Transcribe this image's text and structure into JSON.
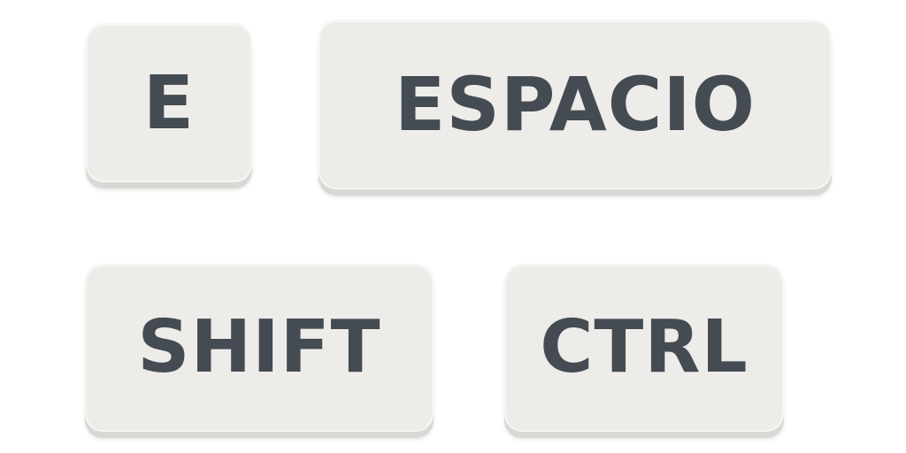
{
  "keys": {
    "e": {
      "label": "E"
    },
    "space": {
      "label": "ESPACIO"
    },
    "shift": {
      "label": "SHIFT"
    },
    "ctrl": {
      "label": "CTRL"
    }
  },
  "colors": {
    "background": "#ffffff",
    "key_face": "#edece9",
    "key_shadow": "#d9d8d4",
    "label": "#444b52"
  }
}
